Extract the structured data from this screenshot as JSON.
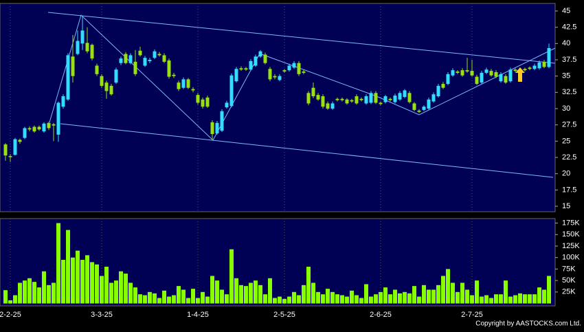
{
  "chart_data": {
    "type": "candlestick",
    "categories": [
      null,
      "2-2-25",
      null,
      null,
      null,
      null,
      null,
      null,
      null,
      null,
      null,
      null,
      null,
      null,
      null,
      null,
      null,
      null,
      null,
      null,
      "3-3-25",
      null,
      null,
      null,
      null,
      null,
      null,
      null,
      null,
      null,
      null,
      null,
      null,
      null,
      null,
      null,
      null,
      null,
      null,
      null,
      "1-4-25",
      null,
      null,
      null,
      null,
      null,
      null,
      null,
      null,
      null,
      null,
      null,
      null,
      null,
      null,
      null,
      null,
      null,
      "2-5-25",
      null,
      null,
      null,
      null,
      null,
      null,
      null,
      null,
      null,
      null,
      null,
      null,
      null,
      null,
      null,
      null,
      null,
      null,
      null,
      "2-6-25",
      null,
      null,
      null,
      null,
      null,
      null,
      null,
      null,
      null,
      null,
      null,
      null,
      null,
      null,
      null,
      null,
      null,
      null,
      "2-7-25",
      null,
      null,
      null,
      null,
      null,
      null,
      null,
      null,
      null,
      null,
      null,
      null,
      null,
      null,
      null,
      null
    ],
    "open": [
      24.5,
      22.7,
      22.9,
      25.2,
      25.5,
      27.0,
      27.2,
      27.2,
      26.5,
      27.8,
      27.6,
      26.0,
      30.3,
      31.4,
      38.0,
      38.4,
      40.0,
      40.1,
      39.8,
      36.6,
      35.0,
      34.0,
      33.5,
      34.0,
      37.0,
      38.4,
      37.0,
      37.2,
      38.9,
      36.6,
      37.3,
      37.8,
      38.4,
      38.2,
      37.4,
      35.2,
      34.0,
      33.2,
      34.5,
      33.0,
      32.1,
      31.4,
      31.7,
      27.9,
      26.2,
      26.6,
      30.2,
      30.4,
      34.2,
      36.2,
      36.2,
      36.0,
      36.6,
      38.0,
      38.3,
      36.1,
      35.0,
      34.4,
      35.9,
      35.9,
      36.3,
      37.0,
      35.7,
      32.4,
      33.2,
      32.1,
      31.9,
      30.8,
      30.0,
      31.5,
      31.5,
      31.4,
      31.3,
      31.9,
      31.5,
      30.8,
      30.9,
      32.4,
      30.9,
      31.0,
      31.5,
      31.0,
      31.4,
      31.8,
      32.4,
      30.8,
      29.7,
      29.8,
      30.0,
      31.1,
      31.9,
      33.8,
      33.8,
      35.1,
      35.7,
      35.9,
      35.9,
      35.8,
      34.9,
      34.0,
      35.5,
      35.8,
      35.6,
      34.2,
      35.0,
      34.2,
      36.0,
      35.5,
      36.1,
      36.3,
      36.1,
      36.2,
      37.2,
      36.4
    ],
    "high": [
      24.7,
      23.0,
      25.5,
      25.4,
      27.2,
      27.3,
      27.4,
      27.4,
      27.9,
      28.0,
      27.8,
      31.1,
      32.2,
      38.5,
      41.3,
      42.0,
      44.3,
      42.5,
      40.0,
      36.9,
      35.3,
      34.3,
      33.8,
      36.3,
      38.0,
      38.7,
      38.5,
      39.0,
      39.5,
      38.1,
      37.8,
      39.1,
      38.7,
      38.5,
      37.7,
      35.5,
      34.3,
      34.8,
      34.7,
      33.3,
      32.4,
      31.7,
      32.0,
      28.2,
      28.1,
      29.9,
      31.2,
      35.4,
      36.4,
      36.5,
      36.4,
      37.6,
      38.3,
      39.0,
      38.6,
      36.4,
      35.3,
      35.3,
      36.1,
      36.9,
      37.3,
      37.3,
      36.0,
      32.7,
      34.0,
      32.4,
      32.2,
      31.1,
      31.1,
      31.7,
      31.7,
      31.6,
      31.5,
      32.2,
      31.7,
      32.2,
      32.7,
      32.7,
      31.1,
      32.1,
      31.7,
      32.3,
      32.7,
      33.0,
      32.7,
      31.0,
      29.9,
      30.5,
      31.7,
      32.5,
      33.8,
      34.1,
      35.6,
      36.2,
      35.9,
      36.2,
      37.8,
      37.5,
      35.2,
      35.8,
      36.3,
      36.1,
      35.9,
      35.6,
      35.3,
      36.3,
      36.2,
      36.3,
      36.3,
      36.5,
      36.9,
      37.4,
      37.5,
      40.0
    ],
    "low": [
      22.0,
      21.8,
      22.8,
      24.6,
      25.3,
      26.5,
      26.3,
      26.6,
      26.3,
      26.7,
      25.0,
      24.9,
      30.0,
      31.2,
      34.0,
      38.2,
      39.0,
      38.5,
      37.4,
      35.0,
      33.2,
      31.5,
      32.0,
      33.8,
      36.7,
      36.8,
      36.8,
      35.0,
      38.0,
      36.4,
      37.0,
      37.6,
      38.0,
      37.0,
      34.6,
      34.7,
      32.7,
      33.0,
      33.0,
      32.5,
      30.6,
      30.0,
      30.1,
      25.2,
      26.0,
      26.4,
      30.0,
      30.2,
      34.0,
      35.8,
      35.8,
      35.8,
      36.4,
      37.8,
      36.8,
      34.2,
      34.5,
      34.2,
      35.5,
      35.7,
      36.1,
      35.0,
      35.3,
      30.5,
      31.6,
      31.2,
      30.0,
      29.8,
      29.8,
      31.1,
      31.1,
      30.6,
      30.9,
      30.6,
      31.1,
      30.6,
      30.7,
      30.7,
      30.5,
      30.8,
      31.1,
      30.8,
      31.2,
      31.6,
      30.8,
      29.6,
      29.3,
      29.6,
      29.8,
      30.9,
      31.7,
      33.0,
      33.6,
      34.9,
      35.3,
      34.9,
      35.5,
      34.9,
      33.6,
      33.8,
      35.3,
      34.9,
      34.7,
      34.0,
      33.8,
      34.0,
      35.6,
      35.3,
      35.7,
      35.9,
      35.9,
      36.0,
      36.2,
      36.2
    ],
    "close": [
      22.8,
      22.6,
      25.3,
      24.9,
      27.0,
      26.8,
      26.5,
      26.8,
      27.7,
      27.0,
      27.4,
      30.9,
      31.9,
      38.2,
      35.0,
      40.4,
      42.0,
      38.8,
      37.7,
      35.3,
      33.5,
      32.7,
      32.2,
      36.0,
      37.7,
      37.0,
      38.2,
      35.3,
      38.2,
      37.8,
      37.5,
      38.8,
      38.2,
      37.2,
      34.9,
      35.0,
      33.0,
      34.5,
      33.2,
      32.8,
      30.9,
      30.3,
      30.3,
      26.1,
      27.8,
      29.6,
      30.9,
      35.1,
      36.1,
      36.0,
      36.0,
      37.3,
      38.0,
      38.8,
      37.0,
      34.5,
      34.8,
      35.0,
      35.7,
      36.6,
      37.0,
      35.3,
      35.5,
      30.8,
      31.9,
      31.4,
      30.3,
      30.0,
      30.8,
      31.3,
      31.3,
      30.8,
      31.1,
      30.8,
      31.3,
      31.9,
      32.4,
      30.9,
      30.7,
      31.9,
      31.3,
      32.0,
      32.4,
      32.8,
      31.0,
      29.8,
      29.5,
      30.3,
      31.4,
      32.2,
      33.5,
      33.2,
      35.3,
      35.9,
      35.5,
      35.1,
      35.7,
      35.1,
      33.8,
      35.5,
      36.0,
      35.1,
      34.9,
      35.3,
      34.0,
      36.0,
      35.8,
      36.0,
      35.9,
      36.1,
      36.6,
      37.1,
      36.4,
      39.3
    ],
    "volume": [
      29000,
      7000,
      18000,
      45000,
      50000,
      55000,
      47000,
      35000,
      70000,
      40000,
      45000,
      175000,
      95000,
      160000,
      100000,
      115000,
      95000,
      105000,
      90000,
      85000,
      60000,
      80000,
      45000,
      50000,
      70000,
      65000,
      45000,
      35000,
      20000,
      18000,
      25000,
      22000,
      12000,
      28000,
      15000,
      18000,
      38000,
      30000,
      12000,
      32000,
      12000,
      25000,
      15000,
      60000,
      50000,
      30000,
      20000,
      118000,
      55000,
      40000,
      38000,
      45000,
      50000,
      40000,
      20000,
      55000,
      12000,
      15000,
      10000,
      15000,
      25000,
      18000,
      40000,
      80000,
      45000,
      25000,
      20000,
      32000,
      25000,
      20000,
      18000,
      15000,
      28000,
      18000,
      12000,
      42000,
      15000,
      20000,
      25000,
      35000,
      20000,
      30000,
      22000,
      25000,
      22000,
      38000,
      15000,
      40000,
      30000,
      30000,
      40000,
      60000,
      75000,
      45000,
      25000,
      45000,
      30000,
      18000,
      50000,
      15000,
      18000,
      12000,
      20000,
      20000,
      50000,
      15000,
      18000,
      22000,
      20000,
      20000,
      20000,
      35000,
      30000,
      60000
    ],
    "up_color": "#33ddff",
    "down_color": "#99e010",
    "volume_color": "#88ff00",
    "ylim": [
      14.16,
      46.16
    ],
    "yticks": [
      15,
      17.5,
      20,
      22.5,
      25,
      27.5,
      30,
      32.5,
      35,
      37.5,
      40,
      42.5,
      45
    ],
    "volume_lim": [
      -5200,
      184800
    ],
    "volume_ticks": [
      {
        "value": 25000,
        "label": "25K"
      },
      {
        "value": 50000,
        "label": "50K"
      },
      {
        "value": 75000,
        "label": "75K"
      },
      {
        "value": 100000,
        "label": "100K"
      },
      {
        "value": 125000,
        "label": "125K"
      },
      {
        "value": 150000,
        "label": "150K"
      },
      {
        "value": 175000,
        "label": "175K"
      }
    ],
    "source": "Copyright by AASTOCKS.com Ltd."
  }
}
